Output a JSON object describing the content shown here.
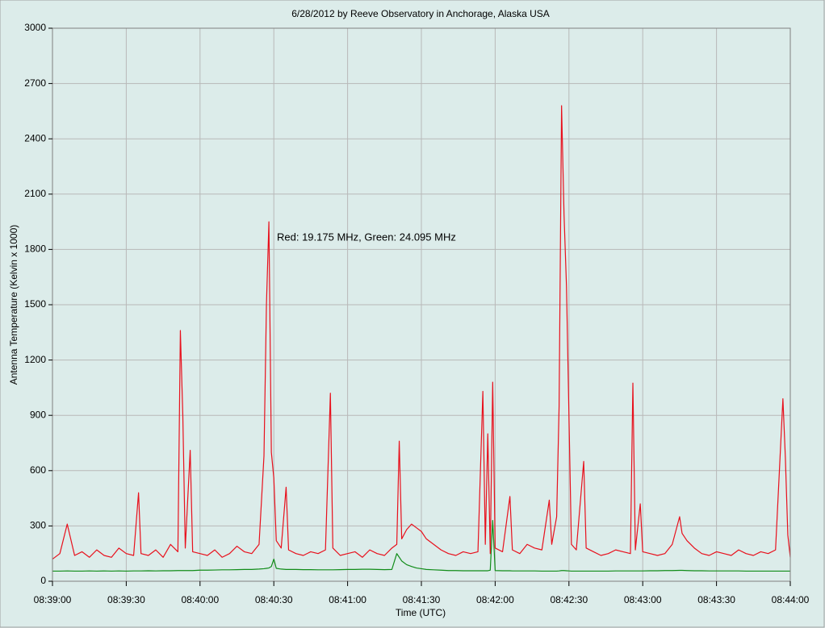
{
  "chart_data": {
    "type": "line",
    "title": "6/28/2012  by  Reeve Observatory  in  Anchorage, Alaska  USA",
    "annotation": "Red: 19.175 MHz, Green: 24.095 MHz",
    "xlabel": "Time (UTC)",
    "ylabel": "Antenna Temperature (Kelvin x 1000)",
    "xlim": [
      "08:39:00",
      "08:44:00"
    ],
    "xticks": [
      "08:39:00",
      "08:39:30",
      "08:40:00",
      "08:40:30",
      "08:41:00",
      "08:41:30",
      "08:42:00",
      "08:42:30",
      "08:43:00",
      "08:43:30",
      "08:44:00"
    ],
    "ylim": [
      0,
      3000
    ],
    "yticks": [
      0,
      300,
      600,
      900,
      1200,
      1500,
      1800,
      2100,
      2400,
      2700,
      3000
    ],
    "grid": true,
    "x": [
      "08:39:00",
      "08:39:03",
      "08:39:06",
      "08:39:09",
      "08:39:12",
      "08:39:15",
      "08:39:18",
      "08:39:21",
      "08:39:24",
      "08:39:27",
      "08:39:30",
      "08:39:33",
      "08:39:35",
      "08:39:36",
      "08:39:39",
      "08:39:42",
      "08:39:45",
      "08:39:48",
      "08:39:51",
      "08:39:52",
      "08:39:53",
      "08:39:54",
      "08:39:56",
      "08:39:57",
      "08:40:00",
      "08:40:03",
      "08:40:06",
      "08:40:09",
      "08:40:12",
      "08:40:15",
      "08:40:18",
      "08:40:21",
      "08:40:24",
      "08:40:26",
      "08:40:27",
      "08:40:28",
      "08:40:29",
      "08:40:30",
      "08:40:31",
      "08:40:33",
      "08:40:35",
      "08:40:36",
      "08:40:39",
      "08:40:42",
      "08:40:45",
      "08:40:48",
      "08:40:51",
      "08:40:53",
      "08:40:54",
      "08:40:57",
      "08:41:00",
      "08:41:03",
      "08:41:06",
      "08:41:09",
      "08:41:12",
      "08:41:15",
      "08:41:18",
      "08:41:20",
      "08:41:21",
      "08:41:22",
      "08:41:24",
      "08:41:26",
      "08:41:28",
      "08:41:30",
      "08:41:32",
      "08:41:35",
      "08:41:38",
      "08:41:41",
      "08:41:44",
      "08:41:47",
      "08:41:50",
      "08:41:53",
      "08:41:55",
      "08:41:56",
      "08:41:57",
      "08:41:58",
      "08:41:59",
      "08:42:00",
      "08:42:03",
      "08:42:06",
      "08:42:07",
      "08:42:10",
      "08:42:13",
      "08:42:16",
      "08:42:19",
      "08:42:22",
      "08:42:23",
      "08:42:25",
      "08:42:26",
      "08:42:27",
      "08:42:28",
      "08:42:29",
      "08:42:30",
      "08:42:31",
      "08:42:33",
      "08:42:36",
      "08:42:37",
      "08:42:40",
      "08:42:43",
      "08:42:46",
      "08:42:49",
      "08:42:52",
      "08:42:55",
      "08:42:56",
      "08:42:57",
      "08:42:59",
      "08:43:00",
      "08:43:03",
      "08:43:06",
      "08:43:09",
      "08:43:12",
      "08:43:15",
      "08:43:16",
      "08:43:18",
      "08:43:21",
      "08:43:24",
      "08:43:27",
      "08:43:30",
      "08:43:33",
      "08:43:36",
      "08:43:39",
      "08:43:42",
      "08:43:45",
      "08:43:48",
      "08:43:51",
      "08:43:54",
      "08:43:57",
      "08:43:58",
      "08:43:59",
      "08:44:00"
    ],
    "series": [
      {
        "color": "#e8101c",
        "values": [
          120,
          150,
          310,
          140,
          160,
          130,
          170,
          140,
          130,
          180,
          150,
          140,
          480,
          150,
          140,
          170,
          130,
          200,
          160,
          1360,
          900,
          180,
          710,
          160,
          150,
          140,
          170,
          130,
          150,
          190,
          160,
          150,
          200,
          680,
          1500,
          1950,
          700,
          560,
          220,
          180,
          510,
          170,
          150,
          140,
          160,
          150,
          170,
          1020,
          180,
          140,
          150,
          160,
          130,
          170,
          150,
          140,
          180,
          200,
          760,
          230,
          280,
          310,
          290,
          270,
          230,
          200,
          170,
          150,
          140,
          160,
          150,
          160,
          1030,
          200,
          800,
          150,
          1080,
          180,
          160,
          460,
          170,
          150,
          200,
          180,
          170,
          440,
          200,
          350,
          950,
          2580,
          1990,
          1600,
          900,
          200,
          170,
          650,
          180,
          160,
          140,
          150,
          170,
          160,
          150,
          1075,
          170,
          420,
          160,
          150,
          140,
          150,
          200,
          350,
          260,
          220,
          180,
          150,
          140,
          160,
          150,
          140,
          170,
          150,
          140,
          160,
          150,
          170,
          990,
          670,
          250,
          130
        ]
      },
      {
        "color": "#108c18",
        "values": [
          55,
          55,
          56,
          55,
          55,
          56,
          55,
          56,
          55,
          56,
          55,
          56,
          56,
          56,
          57,
          56,
          57,
          57,
          58,
          58,
          58,
          58,
          58,
          58,
          60,
          60,
          61,
          62,
          62,
          63,
          64,
          64,
          66,
          68,
          70,
          72,
          80,
          120,
          70,
          66,
          64,
          64,
          64,
          63,
          63,
          62,
          62,
          62,
          62,
          63,
          64,
          64,
          65,
          65,
          64,
          63,
          64,
          150,
          130,
          110,
          90,
          80,
          72,
          68,
          64,
          62,
          60,
          58,
          58,
          57,
          57,
          57,
          57,
          57,
          57,
          60,
          330,
          58,
          57,
          57,
          56,
          56,
          56,
          56,
          55,
          55,
          55,
          55,
          56,
          58,
          58,
          57,
          56,
          55,
          55,
          55,
          55,
          55,
          55,
          55,
          56,
          56,
          56,
          56,
          56,
          56,
          56,
          57,
          57,
          58,
          58,
          59,
          59,
          58,
          57,
          57,
          56,
          56,
          56,
          56,
          56,
          55,
          55,
          55,
          55,
          55,
          55,
          55,
          55,
          55
        ]
      }
    ]
  }
}
